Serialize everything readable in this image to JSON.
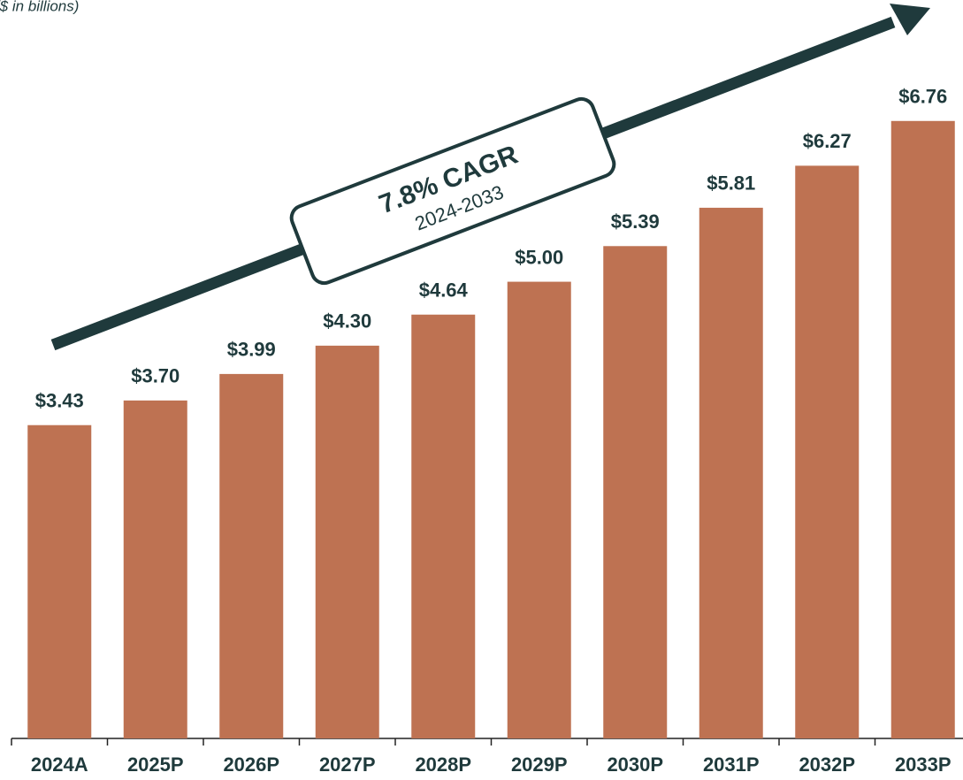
{
  "chart_data": {
    "type": "bar",
    "subtitle": "($ in billions)",
    "categories": [
      "2024A",
      "2025P",
      "2026P",
      "2027P",
      "2028P",
      "2029P",
      "2030P",
      "2031P",
      "2032P",
      "2033P"
    ],
    "values": [
      3.43,
      3.7,
      3.99,
      4.3,
      4.64,
      5.0,
      5.39,
      5.81,
      6.27,
      6.76
    ],
    "value_labels": [
      "$3.43",
      "$3.70",
      "$3.99",
      "$4.30",
      "$4.64",
      "$5.00",
      "$5.39",
      "$5.81",
      "$6.27",
      "$6.76"
    ],
    "color": "#be7252",
    "ylim": [
      0,
      7
    ],
    "annotations": [
      "7.8% CAGR",
      "2024-2033"
    ]
  }
}
